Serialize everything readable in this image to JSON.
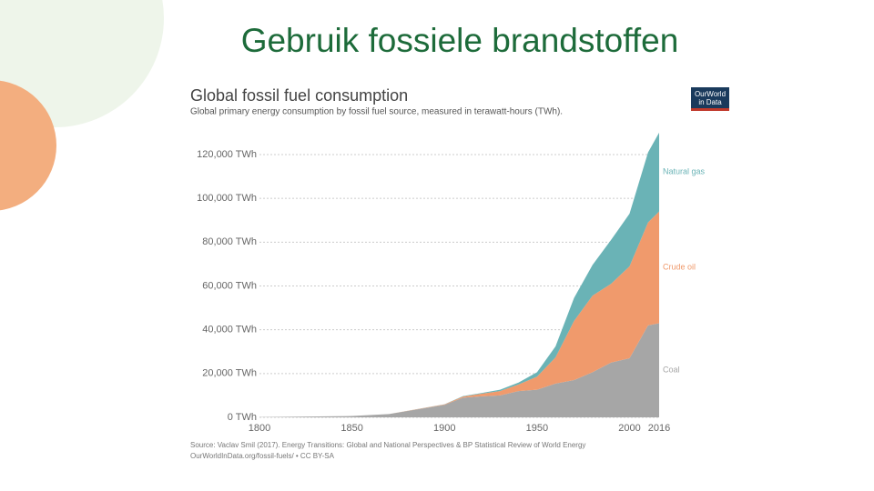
{
  "slide_title": "Gebruik fossiele brandstoffen",
  "logo": [
    "OurWorld",
    "in Data"
  ],
  "chart_data": {
    "type": "stacked-area",
    "title": "Global fossil fuel consumption",
    "subtitle": "Global primary energy consumption by fossil fuel source, measured in terawatt-hours (TWh).",
    "source": [
      "Source: Vaclav Smil (2017). Energy Transitions: Global and National Perspectives & BP Statistical Review of World Energy",
      "OurWorldInData.org/fossil-fuels/ • CC BY-SA"
    ],
    "x": [
      1800,
      1850,
      1870,
      1900,
      1910,
      1920,
      1930,
      1940,
      1950,
      1960,
      1970,
      1980,
      1990,
      2000,
      2010,
      2016
    ],
    "series": [
      {
        "name": "Coal",
        "color": "#a6a6a6",
        "values": [
          100,
          600,
          1500,
          5700,
          9000,
          9600,
          10000,
          12000,
          12600,
          15400,
          17000,
          20600,
          25000,
          27000,
          42000,
          43000
        ]
      },
      {
        "name": "Crude oil",
        "color": "#f09a6c",
        "values": [
          0,
          0,
          0,
          200,
          500,
          1200,
          2000,
          3000,
          6000,
          12000,
          27000,
          35000,
          36000,
          42000,
          47000,
          51000
        ]
      },
      {
        "name": "Natural gas",
        "color": "#6ab3b6",
        "values": [
          0,
          0,
          0,
          60,
          200,
          300,
          600,
          900,
          2000,
          5000,
          10500,
          14000,
          20000,
          24000,
          32000,
          36000
        ]
      }
    ],
    "xlim": [
      1800,
      2016
    ],
    "xticks": [
      1800,
      1850,
      1900,
      1950,
      2000,
      2016
    ],
    "ylim": [
      0,
      120000
    ],
    "yticks": [
      {
        "value": 0,
        "label": "0 TWh"
      },
      {
        "value": 20000,
        "label": "20,000 TWh"
      },
      {
        "value": 40000,
        "label": "40,000 TWh"
      },
      {
        "value": 60000,
        "label": "60,000 TWh"
      },
      {
        "value": 80000,
        "label": "80,000 TWh"
      },
      {
        "value": 100000,
        "label": "100,000 TWh"
      },
      {
        "value": 120000,
        "label": "120,000 TWh"
      }
    ],
    "grid": true
  }
}
